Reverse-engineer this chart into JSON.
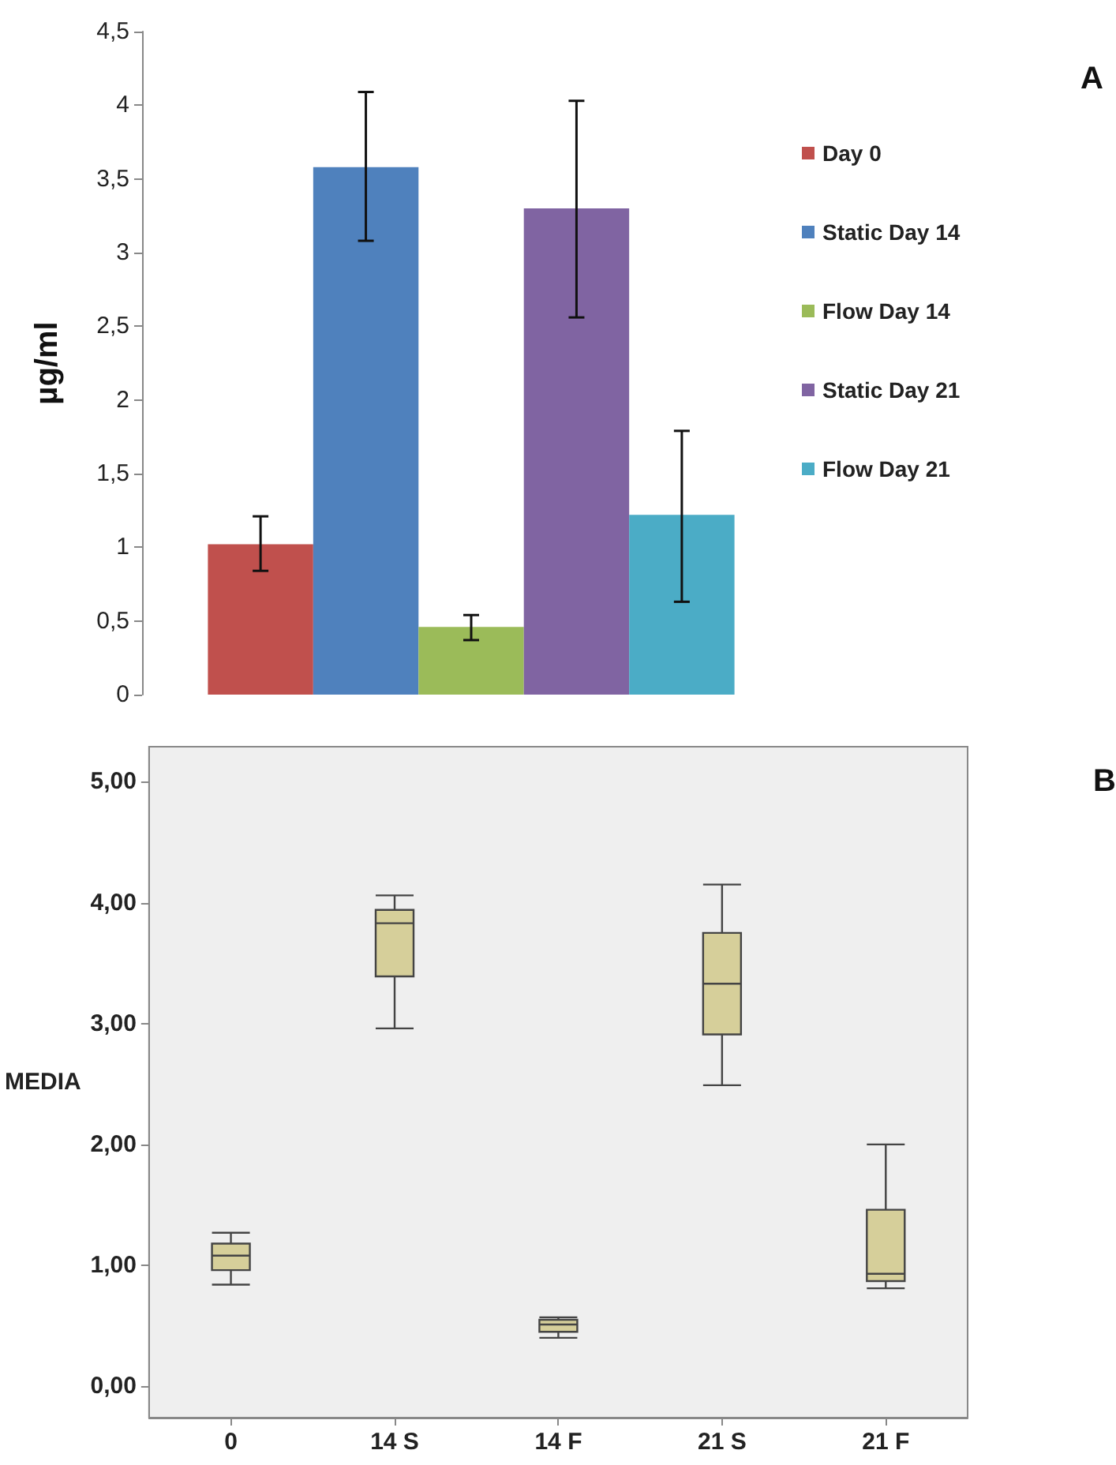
{
  "chart_data": [
    {
      "type": "bar",
      "categories": [
        null
      ],
      "ylabel": "µg/ml",
      "ylim": [
        0,
        4.5
      ],
      "yticks": [
        0,
        {
          "value": 0.5,
          "label": "0,5"
        },
        1,
        {
          "value": 1.5,
          "label": "1,5"
        },
        2,
        {
          "value": 2.5,
          "label": "2,5"
        },
        3,
        {
          "value": 3.5,
          "label": "3,5"
        },
        4,
        {
          "value": 4.5,
          "label": "4,5"
        }
      ],
      "grid": false,
      "legend": "right",
      "annotations": [
        "A"
      ],
      "series": [
        {
          "name": "Day 0",
          "color": "#c0504d",
          "values": [
            1.02
          ],
          "errors": [
            [
              0.84,
              1.21
            ]
          ]
        },
        {
          "name": "Static Day 14",
          "color": "#4f81bd",
          "values": [
            3.58
          ],
          "errors": [
            [
              3.08,
              4.09
            ]
          ]
        },
        {
          "name": "Flow Day 14",
          "color": "#9bbb59",
          "values": [
            0.46
          ],
          "errors": [
            [
              0.37,
              0.54
            ]
          ]
        },
        {
          "name": "Static Day 21",
          "color": "#8064a2",
          "values": [
            3.3
          ],
          "errors": [
            [
              2.56,
              4.03
            ]
          ]
        },
        {
          "name": "Flow Day 21",
          "color": "#4bacc6",
          "values": [
            1.22
          ],
          "errors": [
            [
              0.63,
              1.79
            ]
          ]
        }
      ]
    },
    {
      "type": "box",
      "categories": [
        "0",
        "14 S",
        "14 F",
        "21 S",
        "21 F"
      ],
      "ylabel": "MEDIA",
      "ylim": [
        -0.26,
        5.29
      ],
      "yticks": [
        {
          "value": 0,
          "label": "0,00"
        },
        {
          "value": 1,
          "label": "1,00"
        },
        {
          "value": 2,
          "label": "2,00"
        },
        {
          "value": 3,
          "label": "3,00"
        },
        {
          "value": 4,
          "label": "4,00"
        },
        {
          "value": 5,
          "label": "5,00"
        }
      ],
      "grid": false,
      "color": "#d6cf9a",
      "annotations": [
        "B"
      ],
      "boxes": [
        {
          "low": 0.84,
          "q1": 0.96,
          "median": 1.08,
          "q3": 1.18,
          "high": 1.27
        },
        {
          "low": 2.96,
          "q1": 3.39,
          "median": 3.83,
          "q3": 3.94,
          "high": 4.06
        },
        {
          "low": 0.4,
          "q1": 0.45,
          "median": 0.51,
          "q3": 0.55,
          "high": 0.57
        },
        {
          "low": 2.49,
          "q1": 2.91,
          "median": 3.33,
          "q3": 3.75,
          "high": 4.15
        },
        {
          "low": 0.81,
          "q1": 0.87,
          "median": 0.93,
          "q3": 1.46,
          "high": 2.0
        }
      ]
    }
  ]
}
